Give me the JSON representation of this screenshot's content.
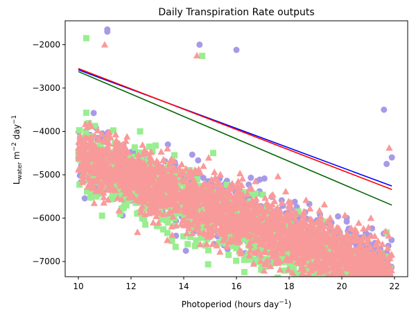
{
  "chart_data": {
    "type": "scatter",
    "title": "Daily Transpiration Rate outputs",
    "xlabel": "Photoperiod (hours day−1)",
    "xlabel_parts": {
      "main": "Photoperiod (hours day",
      "sup": "−1",
      "end": ")"
    },
    "ylabel": "Lwater m−2 day−1",
    "ylabel_parts": {
      "L": "L",
      "sub": "water",
      "mid": " m",
      "sup1": "−2",
      "mid2": " day",
      "sup2": "−1"
    },
    "xlim": [
      9.5,
      22.5
    ],
    "ylim": [
      -7350,
      -1450
    ],
    "x_ticks": [
      10,
      12,
      14,
      16,
      18,
      20,
      22
    ],
    "x_tick_labels": [
      "10",
      "12",
      "14",
      "16",
      "18",
      "20",
      "22"
    ],
    "y_ticks": [
      -7000,
      -6000,
      -5000,
      -4000,
      -3000,
      -2000
    ],
    "y_tick_labels": [
      "−7000",
      "−6000",
      "−5000",
      "−4000",
      "−3000",
      "−2000"
    ],
    "grid": false,
    "legend": null,
    "series": [
      {
        "marker": "circle",
        "color": "#a79ae8",
        "x_range": [
          10,
          21.9
        ],
        "trend": {
          "slope": -220.0,
          "intercept": -2380.0
        },
        "spread": 330,
        "points_count": 1200,
        "outliers": [
          [
            11.1,
            -1650
          ],
          [
            11.1,
            -1700
          ],
          [
            21.6,
            -3500
          ],
          [
            21.9,
            -4600
          ],
          [
            21.2,
            -6900
          ],
          [
            18.2,
            -6620
          ],
          [
            19.5,
            -6650
          ],
          [
            14.6,
            -2000
          ],
          [
            16.0,
            -2120
          ],
          [
            21.7,
            -4750
          ]
        ]
      },
      {
        "marker": "square",
        "color": "#99ee90",
        "x_range": [
          10,
          21.9
        ],
        "trend": {
          "slope": -255.0,
          "intercept": -2070.0
        },
        "spread": 380,
        "points_count": 1200,
        "outliers": [
          [
            10.3,
            -1850
          ],
          [
            10.3,
            -3570
          ],
          [
            19.3,
            -7050
          ],
          [
            20.7,
            -6950
          ],
          [
            21.5,
            -6800
          ],
          [
            14.7,
            -2260
          ],
          [
            21.7,
            -6330
          ]
        ]
      },
      {
        "marker": "triangle",
        "color": "#f99a9a",
        "x_range": [
          10,
          21.9
        ],
        "trend": {
          "slope": -235.0,
          "intercept": -2210.0
        },
        "spread": 360,
        "points_count": 2400,
        "outliers": [
          [
            11.0,
            -2000
          ],
          [
            17.6,
            -6700
          ],
          [
            20.6,
            -6850
          ],
          [
            21.5,
            -6800
          ],
          [
            14.5,
            -2250
          ],
          [
            21.8,
            -4380
          ]
        ]
      }
    ],
    "fit_lines": [
      {
        "color": "#0000ff",
        "x": [
          10,
          21.9
        ],
        "y": [
          -2580,
          -5260
        ]
      },
      {
        "color": "#ff0000",
        "x": [
          10,
          21.9
        ],
        "y": [
          -2550,
          -5340
        ]
      },
      {
        "color": "#006400",
        "x": [
          10,
          21.9
        ],
        "y": [
          -2620,
          -5700
        ]
      }
    ]
  }
}
